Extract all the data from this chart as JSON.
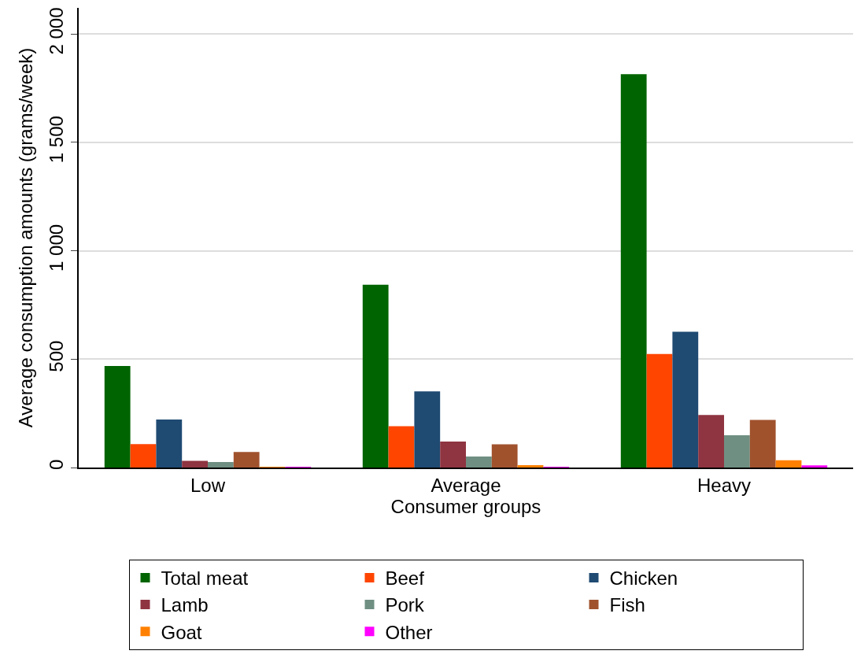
{
  "chart_data": {
    "type": "bar",
    "xlabel": "Consumer groups",
    "ylabel": "Average consumption amounts (grams/week)",
    "categories": [
      "Low",
      "Average",
      "Heavy"
    ],
    "series": [
      {
        "name": "Total meat",
        "color": "#006400",
        "values": [
          468,
          843,
          1814
        ]
      },
      {
        "name": "Beef",
        "color": "#ff4500",
        "values": [
          108,
          191,
          524
        ]
      },
      {
        "name": "Chicken",
        "color": "#1f4a72",
        "values": [
          221,
          351,
          626
        ]
      },
      {
        "name": "Lamb",
        "color": "#8f3441",
        "values": [
          31,
          120,
          242
        ]
      },
      {
        "name": "Pork",
        "color": "#6f8f82",
        "values": [
          25,
          51,
          149
        ]
      },
      {
        "name": "Fish",
        "color": "#a0522d",
        "values": [
          72,
          107,
          220
        ]
      },
      {
        "name": "Goat",
        "color": "#ff8000",
        "values": [
          1,
          11,
          34
        ]
      },
      {
        "name": "Other",
        "color": "#ff00ff",
        "values": [
          2,
          3,
          10
        ]
      }
    ],
    "ylim": [
      0,
      2120
    ],
    "yticks": [
      0,
      500,
      {
        "value": 1000,
        "label": "1 000"
      },
      {
        "value": 1500,
        "label": "1 500"
      },
      {
        "value": 2000,
        "label": "2 000"
      }
    ],
    "grid": "y",
    "legend": "bottom"
  }
}
